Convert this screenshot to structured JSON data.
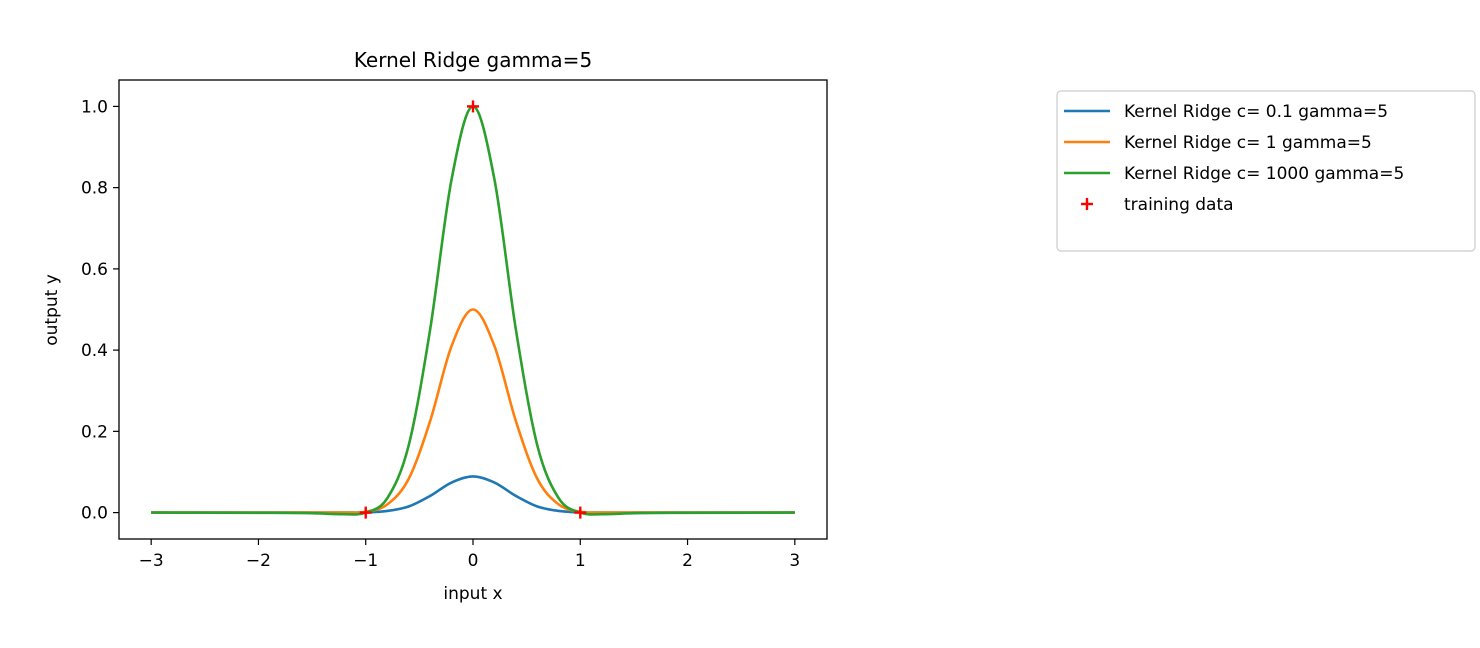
{
  "chart_data": {
    "type": "line",
    "title": "Kernel Ridge gamma=5",
    "xlabel": "input x",
    "ylabel": "output y",
    "xlim": [
      -3.3,
      3.3
    ],
    "ylim": [
      -0.065,
      1.065
    ],
    "xticks": [
      -3,
      -2,
      -1,
      0,
      1,
      2,
      3
    ],
    "xtick_labels": [
      "−3",
      "−2",
      "−1",
      "0",
      "1",
      "2",
      "3"
    ],
    "yticks": [
      0.0,
      0.2,
      0.4,
      0.6,
      0.8,
      1.0
    ],
    "ytick_labels": [
      "0.0",
      "0.2",
      "0.4",
      "0.6",
      "0.8",
      "1.0"
    ],
    "grid": false,
    "legend_position": "outside top-right",
    "series": [
      {
        "name": "Kernel Ridge c= 0.1 gamma=5",
        "color": "#1f77b4",
        "x": [
          -3.0,
          -2.0,
          -1.5,
          -1.2,
          -1.0,
          -0.8,
          -0.6,
          -0.4,
          -0.2,
          0.0,
          0.2,
          0.4,
          0.6,
          0.8,
          1.0,
          1.2,
          1.5,
          2.0,
          3.0
        ],
        "y": [
          0.0,
          0.0,
          0.0,
          0.0,
          0.0005,
          0.004,
          0.015,
          0.041,
          0.074,
          0.089,
          0.074,
          0.041,
          0.015,
          0.004,
          0.0005,
          0.0,
          0.0,
          0.0,
          0.0
        ]
      },
      {
        "name": "Kernel Ridge c= 1 gamma=5",
        "color": "#ff7f0e",
        "x": [
          -3.0,
          -2.0,
          -1.5,
          -1.2,
          -1.0,
          -0.8,
          -0.6,
          -0.4,
          -0.2,
          0.0,
          0.2,
          0.4,
          0.6,
          0.8,
          1.0,
          1.2,
          1.5,
          2.0,
          3.0
        ],
        "y": [
          0.0,
          0.0,
          0.0,
          0.0,
          0.002,
          0.02,
          0.083,
          0.225,
          0.41,
          0.5,
          0.41,
          0.225,
          0.083,
          0.02,
          0.002,
          0.0,
          0.0,
          0.0,
          0.0
        ]
      },
      {
        "name": "Kernel Ridge c= 1000 gamma=5",
        "color": "#2ca02c",
        "x": [
          -3.0,
          -2.0,
          -1.5,
          -1.2,
          -1.0,
          -0.8,
          -0.6,
          -0.4,
          -0.2,
          0.0,
          0.2,
          0.4,
          0.6,
          0.8,
          1.0,
          1.2,
          1.5,
          2.0,
          3.0
        ],
        "y": [
          0.0,
          -0.0005,
          -0.0015,
          -0.004,
          0.0,
          0.035,
          0.165,
          0.45,
          0.82,
          1.0,
          0.82,
          0.45,
          0.165,
          0.035,
          0.0,
          -0.004,
          -0.0015,
          -0.0005,
          0.0
        ]
      }
    ],
    "scatter": {
      "name": "training data",
      "color": "#ff0000",
      "marker": "+",
      "x": [
        -1,
        0,
        1
      ],
      "y": [
        0,
        1,
        0
      ]
    }
  }
}
